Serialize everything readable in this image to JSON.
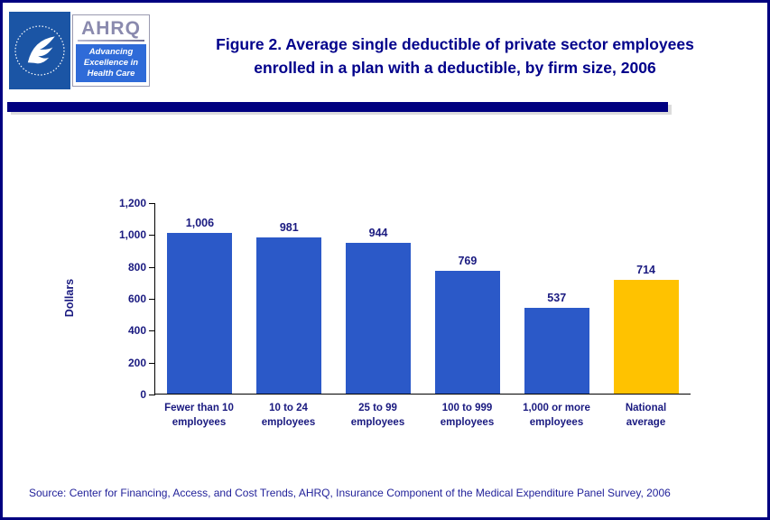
{
  "header": {
    "title_line1": "Figure 2. Average single deductible of private sector employees",
    "title_line2": "enrolled in a plan with a deductible, by firm size, 2006",
    "hhs_logo_name": "hhs-logo",
    "ahrq": {
      "word": "AHRQ",
      "tagline_line1": "Advancing",
      "tagline_line2": "Excellence in",
      "tagline_line3": "Health Care"
    }
  },
  "chart_data": {
    "type": "bar",
    "categories": [
      "Fewer than 10\nemployees",
      "10 to 24\nemployees",
      "25 to 99\nemployees",
      "100 to 999\nemployees",
      "1,000 or more\nemployees",
      "National\naverage"
    ],
    "values": [
      1006,
      981,
      944,
      769,
      537,
      714
    ],
    "value_labels": [
      "1,006",
      "981",
      "944",
      "769",
      "537",
      "714"
    ],
    "title": "Figure 2. Average single deductible of private sector employees enrolled in a plan with a deductible, by firm size, 2006",
    "xlabel": "",
    "ylabel": "Dollars",
    "ylim": [
      0,
      1200
    ],
    "yticks": [
      0,
      200,
      400,
      600,
      800,
      1000,
      1200
    ],
    "ytick_labels": [
      "0",
      "200",
      "400",
      "600",
      "800",
      "1,000",
      "1,200"
    ],
    "bar_colors": [
      "#2b59c8",
      "#2b59c8",
      "#2b59c8",
      "#2b59c8",
      "#2b59c8",
      "#ffc200"
    ],
    "grid": false,
    "legend": "none"
  },
  "footer": {
    "source": "Source: Center for Financing, Access, and Cost Trends, AHRQ, Insurance Component of the Medical Expenditure Panel Survey, 2006"
  },
  "colors": {
    "border_navy": "#000080",
    "title_navy": "#00008b",
    "chart_text_navy": "#1a1a80",
    "bar_blue": "#2b59c8",
    "bar_gold": "#ffc200",
    "hhs_blue": "#1b55a5",
    "tagline_blue": "#2f6bd8"
  }
}
